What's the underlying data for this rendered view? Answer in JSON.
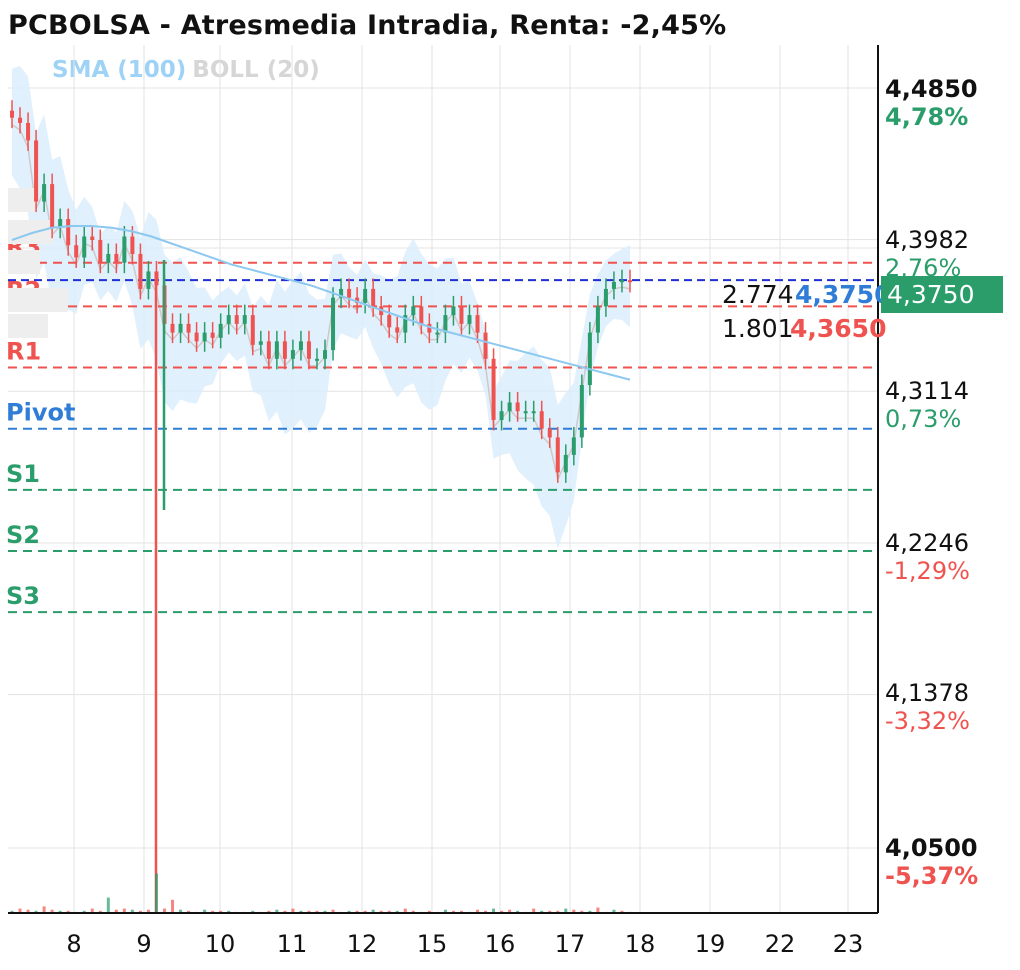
{
  "title": "PCBOLSA - Atresmedia Intradia, Renta: -2,45%",
  "legend": {
    "sma": "SMA (100)",
    "boll": "BOLL (20)"
  },
  "colors": {
    "up": "#2a9d6b",
    "down": "#ef5350",
    "sma": "#8cc8ef",
    "band_fill": "#d8ecfb",
    "pivot_red": "#ef5350",
    "pivot_blue": "#2f7dd6",
    "pivot_green": "#2a9d6b",
    "current_line": "#1f2fd1"
  },
  "chart_data": {
    "type": "candlestick",
    "title": "PCBOLSA - Atresmedia Intradia, Renta: -2,45%",
    "x_ticks": [
      "8",
      "9",
      "10",
      "11",
      "12",
      "15",
      "16",
      "17",
      "18",
      "19",
      "22",
      "23"
    ],
    "y_ticks": [
      {
        "value": "4,4850",
        "pct": "4,78%",
        "bold": true
      },
      {
        "value": "4,3982",
        "pct": "2,76%",
        "bold": false
      },
      {
        "value": "4,3114",
        "pct": "0,73%",
        "bold": false
      },
      {
        "value": "4,2246",
        "pct": "-1,29%",
        "bold": false
      },
      {
        "value": "4,1378",
        "pct": "-3,32%",
        "bold": false
      },
      {
        "value": "4,0500",
        "pct": "-5,37%",
        "bold": true
      }
    ],
    "ylim": [
      4.05,
      4.485
    ],
    "pivot_levels": [
      {
        "name": "R3",
        "value": 4.385
      },
      {
        "name": "R2",
        "value": 4.36
      },
      {
        "name": "R1",
        "value": 4.325
      },
      {
        "name": "Pivot",
        "value": 4.29
      },
      {
        "name": "S1",
        "value": 4.255
      },
      {
        "name": "S2",
        "value": 4.22
      },
      {
        "name": "S3",
        "value": 4.185
      }
    ],
    "current_price": "4,3750",
    "current_price_value": 4.375,
    "order_book": [
      {
        "qty": "2.774",
        "price": "4,3750"
      },
      {
        "qty": "1.801",
        "price": "4,3650"
      }
    ],
    "closes": [
      4.468,
      4.465,
      4.455,
      4.42,
      4.43,
      4.405,
      4.41,
      4.395,
      4.388,
      4.4,
      4.398,
      4.385,
      4.39,
      4.385,
      4.4,
      4.39,
      4.37,
      4.38,
      4.372,
      4.35,
      4.345,
      4.35,
      4.345,
      4.34,
      4.345,
      4.342,
      4.35,
      4.355,
      4.35,
      4.355,
      4.338,
      4.34,
      4.33,
      4.34,
      4.33,
      4.335,
      4.34,
      4.33,
      4.33,
      4.335,
      4.365,
      4.37,
      4.365,
      4.362,
      4.37,
      4.36,
      4.355,
      4.348,
      4.345,
      4.355,
      4.36,
      4.35,
      4.345,
      4.345,
      4.355,
      4.36,
      4.35,
      4.355,
      4.345,
      4.33,
      4.295,
      4.3,
      4.305,
      4.3,
      4.3,
      4.3,
      4.29,
      4.285,
      4.265,
      4.275,
      4.285,
      4.315,
      4.345,
      4.36,
      4.37,
      4.374,
      4.375,
      4.374
    ],
    "sma": [
      4.398,
      4.402,
      4.405,
      4.406,
      4.406,
      4.405,
      4.403,
      4.4,
      4.396,
      4.392,
      4.388,
      4.384,
      4.381,
      4.378,
      4.375,
      4.372,
      4.368,
      4.364,
      4.36,
      4.356,
      4.352,
      4.348,
      4.345,
      4.342,
      4.339,
      4.336,
      4.333,
      4.33,
      4.327,
      4.324,
      4.321,
      4.318
    ],
    "volumes": [
      2,
      4,
      3,
      2,
      6,
      3,
      2,
      2,
      1,
      2,
      4,
      2,
      14,
      3,
      4,
      3,
      2,
      3,
      36,
      4,
      12,
      3,
      2,
      1,
      3,
      2,
      2,
      2,
      1,
      1,
      2,
      1,
      2,
      3,
      2,
      4,
      2,
      2,
      2,
      2,
      3,
      1,
      2,
      2,
      2,
      3,
      2,
      2,
      2,
      4,
      2,
      1,
      2,
      1,
      3,
      2,
      2,
      1,
      3,
      2,
      4,
      2,
      3,
      2,
      1,
      4,
      2,
      2,
      2,
      4,
      3,
      2,
      2,
      5,
      1,
      3,
      2,
      1
    ]
  }
}
